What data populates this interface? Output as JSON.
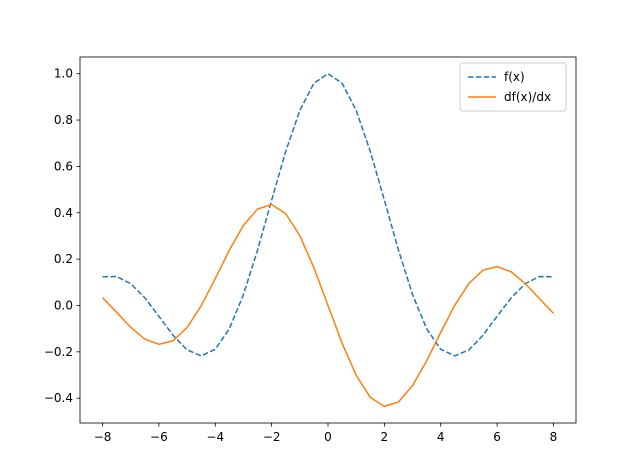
{
  "chart_data": {
    "type": "line",
    "x": [
      -8,
      -7.5,
      -7,
      -6.5,
      -6,
      -5.5,
      -5,
      -4.5,
      -4,
      -3.5,
      -3,
      -2.5,
      -2,
      -1.5,
      -1,
      -0.5,
      0,
      0.5,
      1,
      1.5,
      2,
      2.5,
      3,
      3.5,
      4,
      4.5,
      5,
      5.5,
      6,
      6.5,
      7,
      7.5,
      8
    ],
    "series": [
      {
        "name": "f(x)",
        "color": "#1f77b4",
        "dash": true,
        "values": [
          0.1237,
          0.1251,
          0.0939,
          0.0331,
          -0.0466,
          -0.1283,
          -0.1918,
          -0.2172,
          -0.1892,
          -0.1002,
          0.047,
          0.2394,
          0.4546,
          0.665,
          0.8415,
          0.9589,
          1,
          0.9589,
          0.8415,
          0.665,
          0.4546,
          0.2394,
          0.047,
          -0.1002,
          -0.1892,
          -0.2172,
          -0.1918,
          -0.1283,
          -0.0466,
          0.0331,
          0.0939,
          0.1251,
          0.1237
        ]
      },
      {
        "name": "df(x)/dx",
        "color": "#ff7f0e",
        "dash": false,
        "values": [
          0.0337,
          -0.0295,
          -0.0943,
          -0.1452,
          -0.1678,
          -0.1522,
          -0.0951,
          -0.0014,
          0.1161,
          0.2389,
          0.3457,
          0.4162,
          0.4354,
          0.3962,
          0.3012,
          0.1626,
          0,
          -0.1626,
          -0.3012,
          -0.3962,
          -0.4354,
          -0.4162,
          -0.3457,
          -0.2389,
          -0.1161,
          0.0014,
          0.0951,
          0.1522,
          0.1678,
          0.1452,
          0.0943,
          0.0295,
          -0.0337
        ]
      }
    ],
    "xlim": [
      -8.8,
      8.8
    ],
    "ylim": [
      -0.507,
      1.072
    ],
    "xticks": [
      {
        "value": -8,
        "label": "−8"
      },
      {
        "value": -6,
        "label": "−6"
      },
      {
        "value": -4,
        "label": "−4"
      },
      {
        "value": -2,
        "label": "−2"
      },
      0,
      2,
      4,
      6,
      8
    ],
    "yticks": [
      {
        "value": -0.4,
        "label": "−0.4"
      },
      {
        "value": -0.2,
        "label": "−0.2"
      },
      {
        "value": 0,
        "label": "0.0"
      },
      0.2,
      0.4,
      0.6,
      0.8,
      {
        "value": 1,
        "label": "1.0"
      }
    ],
    "legend": "upper right",
    "grid": false
  }
}
